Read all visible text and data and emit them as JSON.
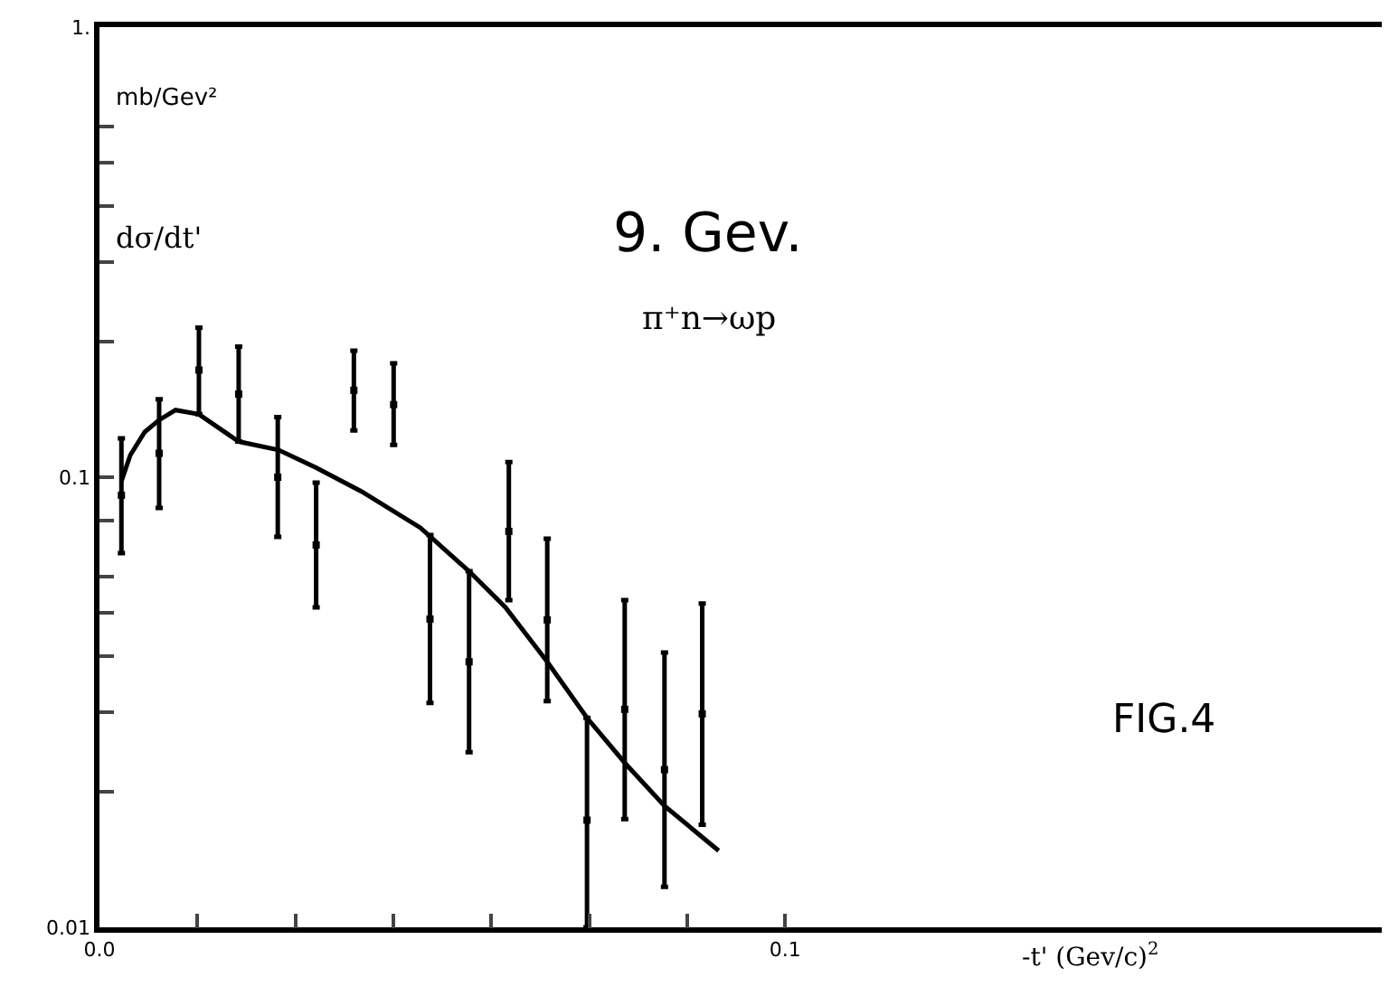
{
  "chart_data": {
    "type": "scatter",
    "title": "9. Gev.",
    "subtitle": "π⁺n→ωp",
    "xlabel": "-t' (Gev/c)$^{2}$",
    "ylabel": "dσ/dt'",
    "annotations": [
      "mb/Gev²",
      "FIG.4"
    ],
    "log": "y",
    "marker": "square",
    "xlim": [
      0,
      0.187
    ],
    "ylim": [
      0.01,
      1
    ],
    "xticks": [
      {
        "value": 0,
        "label": "0.0"
      },
      {
        "value": 0.01429,
        "label": null
      },
      {
        "value": 0.02857,
        "label": null
      },
      {
        "value": 0.04286,
        "label": null
      },
      {
        "value": 0.05714,
        "label": null
      },
      {
        "value": 0.07143,
        "label": null
      },
      {
        "value": 0.08571,
        "label": null
      },
      {
        "value": 0.1,
        "label": "0.1"
      }
    ],
    "yticks": [
      0.01,
      {
        "value": 0.02,
        "label": null
      },
      {
        "value": 0.03,
        "label": null
      },
      {
        "value": 0.04,
        "label": null
      },
      {
        "value": 0.05,
        "label": null
      },
      {
        "value": 0.06,
        "label": null
      },
      {
        "value": 0.08,
        "label": null
      },
      0.1,
      {
        "value": 0.2,
        "label": null
      },
      {
        "value": 0.3,
        "label": null
      },
      {
        "value": 0.4,
        "label": null
      },
      {
        "value": 0.5,
        "label": null
      },
      {
        "value": 0.6,
        "label": null
      },
      {
        "value": 1,
        "label": "1."
      }
    ],
    "series": [
      {
        "color": "#000000",
        "x": [
          0.0032,
          0.0087,
          0.0145,
          0.0203,
          0.026,
          0.0316,
          0.0371,
          0.0429,
          0.0482,
          0.0539,
          0.0597,
          0.0653,
          0.0711,
          0.0766,
          0.0824,
          0.0879
        ],
        "values": [
          0.0912,
          0.113,
          0.173,
          0.153,
          0.1,
          0.0707,
          0.156,
          0.145,
          0.0484,
          0.0389,
          0.0758,
          0.0482,
          0.0173,
          0.0305,
          0.0224,
          0.0298
        ],
        "errors": [
          [
            0.0678,
            0.122
          ],
          [
            0.0855,
            0.149
          ],
          [
            0.138,
            0.215
          ],
          [
            0.12,
            0.195
          ],
          [
            0.0737,
            0.136
          ],
          [
            0.0514,
            0.0973
          ],
          [
            0.127,
            0.191
          ],
          [
            0.118,
            0.179
          ],
          [
            0.0315,
            0.0744
          ],
          [
            0.0245,
            0.0618
          ],
          [
            0.0533,
            0.108
          ],
          [
            0.0318,
            0.073
          ],
          [
            0.01,
            0.0292
          ],
          [
            0.0174,
            0.0533
          ],
          [
            0.0123,
            0.0408
          ],
          [
            0.0169,
            0.0524
          ]
        ]
      },
      {
        "type": "line",
        "marker": "none",
        "color": "#000000",
        "x": [
          0.0032,
          0.0045,
          0.0066,
          0.0087,
          0.0111,
          0.0145,
          0.0203,
          0.0261,
          0.0316,
          0.0382,
          0.0468,
          0.0539,
          0.0592,
          0.0653,
          0.0711,
          0.0766,
          0.0824,
          0.0903
        ],
        "values": [
          0.098,
          0.112,
          0.126,
          0.134,
          0.141,
          0.138,
          0.12,
          0.115,
          0.105,
          0.093,
          0.0772,
          0.0618,
          0.0514,
          0.0389,
          0.0292,
          0.0232,
          0.0186,
          0.0148
        ]
      }
    ]
  }
}
